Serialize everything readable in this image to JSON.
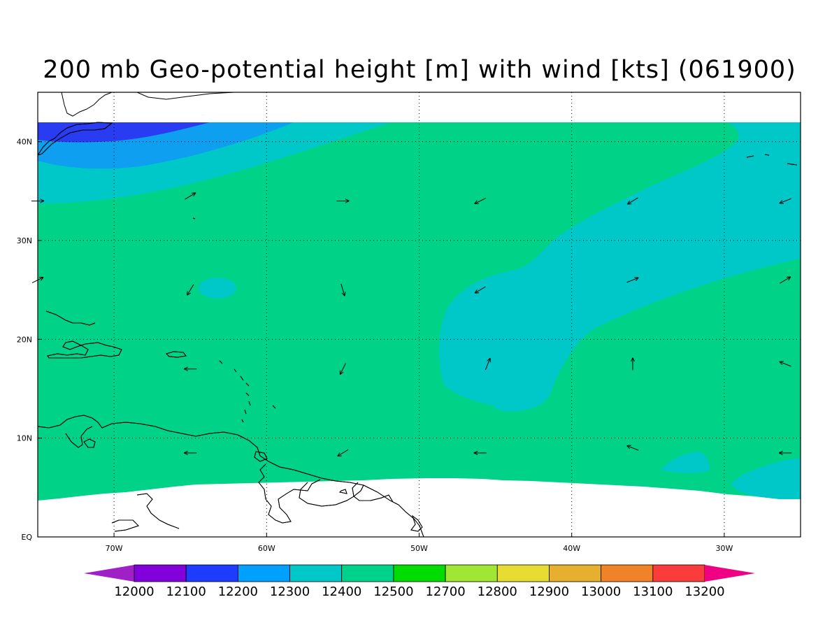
{
  "title": "200 mb Geo-potential height [m] with wind [kts] (061900)",
  "map": {
    "lon_range": [
      -75,
      -25
    ],
    "lat_range": [
      0,
      45
    ],
    "longitude_ticks": [
      {
        "lon": -70,
        "label": "70W"
      },
      {
        "lon": -60,
        "label": "60W"
      },
      {
        "lon": -50,
        "label": "50W"
      },
      {
        "lon": -40,
        "label": "40W"
      },
      {
        "lon": -30,
        "label": "30W"
      }
    ],
    "latitude_ticks": [
      {
        "lat": 0,
        "label": "EQ"
      },
      {
        "lat": 10,
        "label": "10N"
      },
      {
        "lat": 20,
        "label": "20N"
      },
      {
        "lat": 30,
        "label": "30N"
      },
      {
        "lat": 40,
        "label": "40N"
      }
    ],
    "gridlines": "dotted",
    "data_lat_range": [
      4,
      42
    ],
    "fill_colors": {
      "12100": "#2a3cf2",
      "12200": "#0f9ff0",
      "12300": "#00c8c8",
      "12400": "#00d287",
      "land_outline": "#000000",
      "wind_arrow": "#000000"
    }
  },
  "colorbar": {
    "levels": [
      "12000",
      "12100",
      "12200",
      "12300",
      "12400",
      "12500",
      "12700",
      "12800",
      "12900",
      "13000",
      "13100",
      "13200"
    ],
    "colors": [
      "#a020c8",
      "#8200dc",
      "#1e3cff",
      "#00a0ff",
      "#00c8c8",
      "#00d28c",
      "#00dc00",
      "#a0e632",
      "#e6dc32",
      "#e6af2d",
      "#f08228",
      "#fa3c3c",
      "#f00082"
    ]
  },
  "wind_vectors": [
    {
      "lon": -75,
      "lat": 34,
      "u": 1,
      "v": 0
    },
    {
      "lon": -65,
      "lat": 34.5,
      "u": 1,
      "v": 0.6
    },
    {
      "lon": -55,
      "lat": 34,
      "u": 1,
      "v": 0
    },
    {
      "lon": -46,
      "lat": 34,
      "u": -1,
      "v": -0.5
    },
    {
      "lon": -36,
      "lat": 34,
      "u": -1,
      "v": -0.6
    },
    {
      "lon": -26,
      "lat": 34,
      "u": -1,
      "v": -0.4
    },
    {
      "lon": -75,
      "lat": 26,
      "u": 1,
      "v": 0.5
    },
    {
      "lon": -65,
      "lat": 25,
      "u": -0.6,
      "v": -1
    },
    {
      "lon": -55,
      "lat": 25,
      "u": 0.3,
      "v": -1
    },
    {
      "lon": -46,
      "lat": 25,
      "u": -1,
      "v": -0.6
    },
    {
      "lon": -36,
      "lat": 26,
      "u": 1,
      "v": 0.4
    },
    {
      "lon": -26,
      "lat": 26,
      "u": 1,
      "v": 0.6
    },
    {
      "lon": -65,
      "lat": 17,
      "u": -1,
      "v": 0
    },
    {
      "lon": -55,
      "lat": 17,
      "u": -0.5,
      "v": -1
    },
    {
      "lon": -45.5,
      "lat": 17.5,
      "u": 0.4,
      "v": 1
    },
    {
      "lon": -36,
      "lat": 17.5,
      "u": 0,
      "v": 1
    },
    {
      "lon": -26,
      "lat": 17.5,
      "u": -1,
      "v": 0.4
    },
    {
      "lon": -65,
      "lat": 8.5,
      "u": -1,
      "v": 0
    },
    {
      "lon": -55,
      "lat": 8.5,
      "u": -1,
      "v": -0.6
    },
    {
      "lon": -46,
      "lat": 8.5,
      "u": -1,
      "v": 0
    },
    {
      "lon": -36,
      "lat": 9,
      "u": -1,
      "v": 0.4
    },
    {
      "lon": -26,
      "lat": 8.5,
      "u": -1,
      "v": 0
    }
  ]
}
